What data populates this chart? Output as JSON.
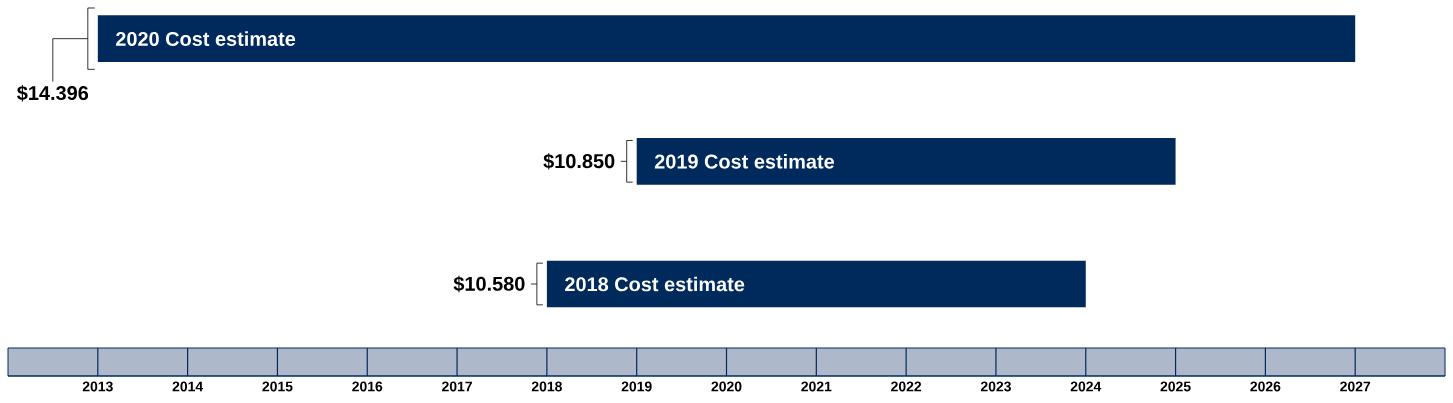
{
  "chart_data": {
    "type": "bar",
    "orientation": "horizontal",
    "tick_labels": "x",
    "categories": [
      "2020 Cost estimate",
      "2019 Cost estimate",
      "2018 Cost estimate"
    ],
    "base": [
      2013,
      2019,
      2018
    ],
    "values": [
      14,
      6,
      6
    ],
    "color": "#002a5c",
    "xlim": [
      2012,
      2028
    ],
    "xticks": [
      2013,
      2014,
      2015,
      2016,
      2017,
      2018,
      2019,
      2020,
      2021,
      2022,
      2023,
      2024,
      2025,
      2026,
      2027
    ],
    "annotations": [
      {
        "text": "$14.396",
        "x": 2013,
        "y": "2020 Cost estimate"
      },
      {
        "text": "$10.850",
        "x": 2019,
        "y": "2019 Cost estimate"
      },
      {
        "text": "$10.580",
        "x": 2018,
        "y": "2018 Cost estimate"
      }
    ]
  }
}
